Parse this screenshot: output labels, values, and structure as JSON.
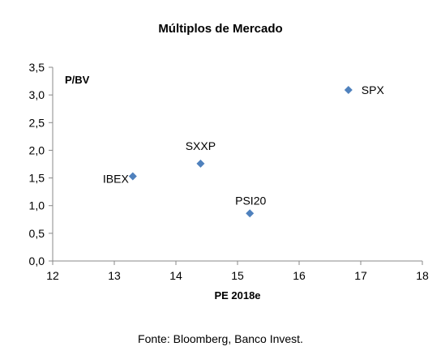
{
  "title": "Múltiplos de Mercado",
  "source": "Fonte: Bloomberg, Banco Invest.",
  "chart_data": {
    "type": "scatter",
    "title": "Múltiplos de Mercado",
    "xlabel": "PE 2018e",
    "ylabel": "P/BV",
    "xlim": [
      12,
      18
    ],
    "ylim": [
      0.0,
      3.5
    ],
    "x_ticks": [
      12,
      13,
      14,
      15,
      16,
      17,
      18
    ],
    "x_tick_labels": [
      "12",
      "13",
      "14",
      "15",
      "16",
      "17",
      "18"
    ],
    "y_ticks": [
      0.0,
      0.5,
      1.0,
      1.5,
      2.0,
      2.5,
      3.0,
      3.5
    ],
    "y_tick_labels": [
      "0,0",
      "0,5",
      "1,0",
      "1,5",
      "2,0",
      "2,5",
      "3,0",
      "3,5"
    ],
    "grid": false,
    "legend": "none",
    "marker": "diamond",
    "marker_color": "#4f81bd",
    "points": [
      {
        "label": "IBEX",
        "x": 13.3,
        "y": 1.53
      },
      {
        "label": "SXXP",
        "x": 14.4,
        "y": 1.76
      },
      {
        "label": "SPX",
        "x": 16.8,
        "y": 3.09
      },
      {
        "label": "PSI20",
        "x": 15.2,
        "y": 0.86
      }
    ]
  }
}
